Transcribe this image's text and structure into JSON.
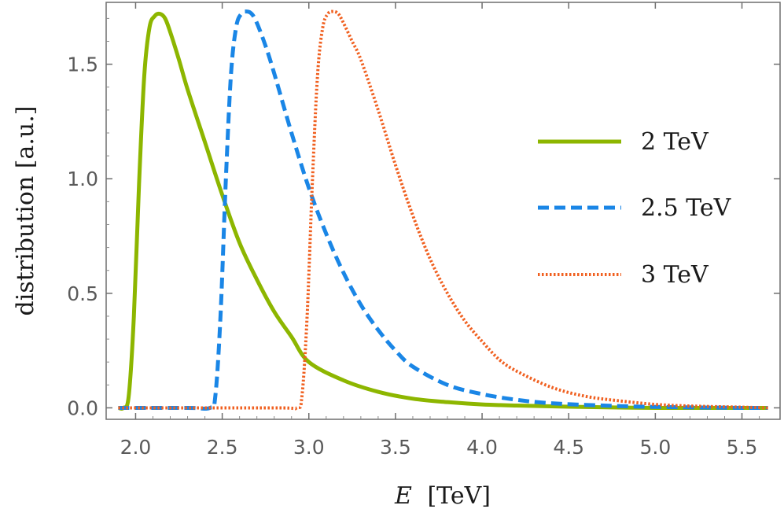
{
  "chart_data": {
    "type": "line",
    "xlabel_var": "E",
    "xlabel_unit": "[TeV]",
    "ylabel": "distribution [a.u.]",
    "xlim": [
      1.83,
      5.72
    ],
    "ylim": [
      -0.05,
      1.77
    ],
    "xticks": [
      2.0,
      2.5,
      3.0,
      3.5,
      4.0,
      4.5,
      5.0,
      5.5
    ],
    "xtick_labels": [
      "2.0",
      "2.5",
      "3.0",
      "3.5",
      "4.0",
      "4.5",
      "5.0",
      "5.5"
    ],
    "yticks": [
      0.0,
      0.5,
      1.0,
      1.5
    ],
    "ytick_labels": [
      "0.0",
      "0.5",
      "1.0",
      "1.5"
    ],
    "grid": false,
    "legend_position": "right",
    "series": [
      {
        "name": "2 TeV",
        "color": "#8db600",
        "style": "solid",
        "x": [
          1.9,
          1.93,
          1.96,
          1.99,
          2.02,
          2.05,
          2.08,
          2.11,
          2.14,
          2.17,
          2.2,
          2.25,
          2.3,
          2.4,
          2.5,
          2.6,
          2.7,
          2.8,
          2.9,
          3.0,
          3.2,
          3.4,
          3.6,
          3.8,
          4.0,
          4.2,
          4.5,
          5.0,
          5.5,
          5.65
        ],
        "values": [
          0.0,
          0.0,
          0.05,
          0.4,
          0.98,
          1.45,
          1.66,
          1.71,
          1.72,
          1.7,
          1.64,
          1.52,
          1.39,
          1.16,
          0.93,
          0.72,
          0.56,
          0.42,
          0.31,
          0.2,
          0.12,
          0.07,
          0.04,
          0.025,
          0.015,
          0.01,
          0.005,
          0.0,
          0.0,
          0.0
        ]
      },
      {
        "name": "2.5 TeV",
        "color": "#1a86e6",
        "style": "dashed",
        "x": [
          1.9,
          2.3,
          2.43,
          2.46,
          2.49,
          2.52,
          2.55,
          2.58,
          2.61,
          2.64,
          2.67,
          2.7,
          2.75,
          2.8,
          2.9,
          3.0,
          3.1,
          3.2,
          3.3,
          3.4,
          3.5,
          3.6,
          3.8,
          4.0,
          4.2,
          4.4,
          4.7,
          5.0,
          5.5,
          5.65
        ],
        "values": [
          0.0,
          0.0,
          0.0,
          0.05,
          0.4,
          0.98,
          1.45,
          1.66,
          1.72,
          1.73,
          1.72,
          1.68,
          1.58,
          1.46,
          1.2,
          0.96,
          0.76,
          0.59,
          0.45,
          0.34,
          0.25,
          0.18,
          0.1,
          0.06,
          0.035,
          0.02,
          0.01,
          0.004,
          0.0,
          0.0
        ]
      },
      {
        "name": "3 TeV",
        "color": "#f06020",
        "style": "dotted",
        "x": [
          1.9,
          2.8,
          2.93,
          2.96,
          2.99,
          3.02,
          3.05,
          3.08,
          3.11,
          3.14,
          3.17,
          3.2,
          3.25,
          3.3,
          3.4,
          3.5,
          3.6,
          3.7,
          3.8,
          3.9,
          4.0,
          4.1,
          4.2,
          4.4,
          4.6,
          4.8,
          5.0,
          5.2,
          5.5,
          5.65
        ],
        "values": [
          0.0,
          0.0,
          0.0,
          0.05,
          0.4,
          0.98,
          1.45,
          1.66,
          1.72,
          1.73,
          1.72,
          1.68,
          1.6,
          1.52,
          1.3,
          1.06,
          0.84,
          0.65,
          0.5,
          0.38,
          0.29,
          0.21,
          0.16,
          0.09,
          0.05,
          0.03,
          0.015,
          0.008,
          0.003,
          0.0
        ]
      }
    ]
  }
}
